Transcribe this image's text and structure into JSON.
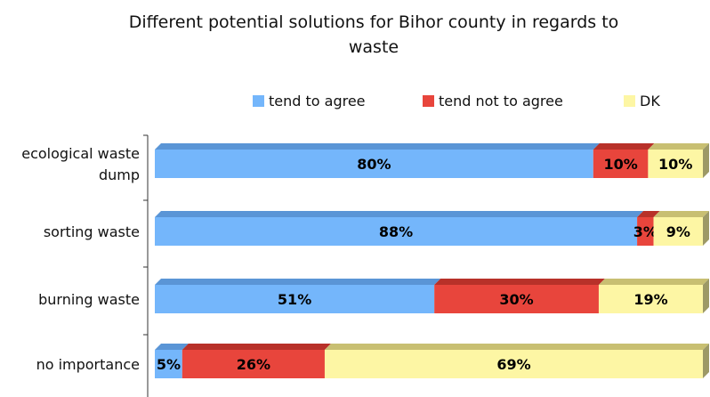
{
  "chart_data": {
    "type": "bar",
    "orientation": "horizontal",
    "stacked": true,
    "percent": true,
    "title_lines": [
      "Different potential solutions for Bihor county in regards to",
      "waste"
    ],
    "categories": [
      "ecological waste dump",
      "sorting waste",
      "burning waste",
      "no importance"
    ],
    "category_lines": [
      [
        "ecological waste",
        "dump"
      ],
      [
        "sorting waste"
      ],
      [
        "burning waste"
      ],
      [
        "no importance"
      ]
    ],
    "series": [
      {
        "name": "tend to agree",
        "values": [
          80,
          88,
          51,
          5
        ],
        "color": "#74b6fb",
        "top_color": "#5a95d6"
      },
      {
        "name": "tend not to agree",
        "values": [
          10,
          3,
          30,
          26
        ],
        "color": "#e8453c",
        "top_color": "#b83129"
      },
      {
        "name": "DK",
        "values": [
          10,
          9,
          19,
          69
        ],
        "color": "#fdf6a4",
        "top_color": "#c8bf72"
      }
    ],
    "value_labels": [
      [
        "80%",
        "10%",
        "10%"
      ],
      [
        "88%",
        "3%",
        "9%"
      ],
      [
        "51%",
        "30%",
        "19%"
      ],
      [
        "5%",
        "26%",
        "69%"
      ]
    ],
    "legend_position": "top",
    "xlim": [
      0,
      100
    ],
    "grid": false
  }
}
